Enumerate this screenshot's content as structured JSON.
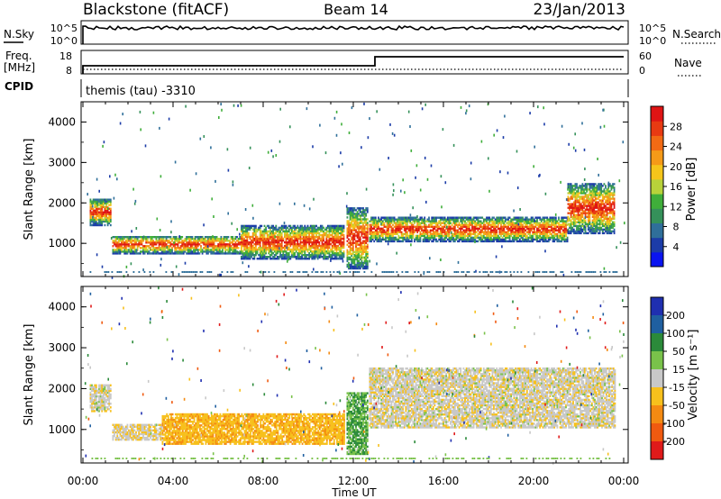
{
  "header": {
    "station": "Blackstone (fitACF)",
    "beam": "Beam 14",
    "date": "23/Jan/2013",
    "cpid_text": "themis (tau) -3310"
  },
  "aux_panels": {
    "nsky": {
      "left_label": "N.Sky",
      "right_label": "N.Search",
      "left_top_tick": "10^5",
      "left_bottom_tick": "10^0",
      "right_top_tick": "10^5",
      "right_bottom_tick": "10^0"
    },
    "freq": {
      "left_label_1": "Freq.",
      "left_label_2": "[MHz]",
      "left_top_tick": "18",
      "left_bottom_tick": "8",
      "right_label": "Nave",
      "right_top_tick": "60",
      "right_bottom_tick": "0"
    },
    "cpid_label": "CPID"
  },
  "colors": {
    "power": [
      "#0a14f0",
      "#1c3ca8",
      "#2f6f9a",
      "#35915a",
      "#3fae3a",
      "#b8d23a",
      "#f5c51b",
      "#f59a18",
      "#f26a14",
      "#e83a12",
      "#df1414"
    ],
    "velocity": [
      "#1f2fb0",
      "#1f5fa0",
      "#2b8a3a",
      "#79c24a",
      "#c8c8c8",
      "#f7c01c",
      "#f48a12",
      "#f05a10",
      "#e01a1a"
    ]
  },
  "chart_data": [
    {
      "type": "heatmap",
      "title": "",
      "xlabel": "Time UT",
      "ylabel": "Slant Range [km]",
      "x_ticks": [
        "00:00",
        "04:00",
        "08:00",
        "12:00",
        "16:00",
        "20:00",
        "00:00"
      ],
      "xlim_hours": [
        0,
        24
      ],
      "y_ticks": [
        1000,
        2000,
        3000,
        4000
      ],
      "ylim": [
        180,
        4500
      ],
      "colorbar_label": "Power [dB]",
      "colorbar_ticks": [
        "4",
        "8",
        "12",
        "16",
        "20",
        "24",
        "28"
      ],
      "bands": [
        {
          "t0": 0.3,
          "t1": 1.2,
          "r0": 1450,
          "r1": 2100
        },
        {
          "t0": 1.3,
          "t1": 7.0,
          "r0": 750,
          "r1": 1200
        },
        {
          "t0": 7.0,
          "t1": 11.6,
          "r0": 620,
          "r1": 1450
        },
        {
          "t0": 11.7,
          "t1": 12.6,
          "r0": 380,
          "r1": 1900
        },
        {
          "t0": 12.7,
          "t1": 21.5,
          "r0": 1050,
          "r1": 1650
        },
        {
          "t0": 21.5,
          "t1": 23.6,
          "r0": 1250,
          "r1": 2500
        }
      ]
    },
    {
      "type": "heatmap",
      "title": "",
      "xlabel": "Time UT",
      "ylabel": "Slant Range [km]",
      "x_ticks": [
        "00:00",
        "04:00",
        "08:00",
        "12:00",
        "16:00",
        "20:00",
        "00:00"
      ],
      "xlim_hours": [
        0,
        24
      ],
      "y_ticks": [
        1000,
        2000,
        3000,
        4000
      ],
      "ylim": [
        180,
        4500
      ],
      "colorbar_label": "Velocity [m s⁻¹]",
      "colorbar_ticks": [
        "200",
        "100",
        "50",
        "15",
        "-15",
        "-50",
        "-100",
        "-200"
      ],
      "bands": [
        {
          "t0": 0.3,
          "t1": 1.2,
          "r0": 1450,
          "r1": 2100,
          "value": -5
        },
        {
          "t0": 1.3,
          "t1": 3.5,
          "r0": 750,
          "r1": 1150,
          "value": -10
        },
        {
          "t0": 3.5,
          "t1": 11.6,
          "r0": 650,
          "r1": 1400,
          "value": -40
        },
        {
          "t0": 11.7,
          "t1": 12.6,
          "r0": 400,
          "r1": 1900,
          "value": 30
        },
        {
          "t0": 12.7,
          "t1": 23.6,
          "r0": 1050,
          "r1": 2500,
          "value": -5
        }
      ]
    }
  ]
}
